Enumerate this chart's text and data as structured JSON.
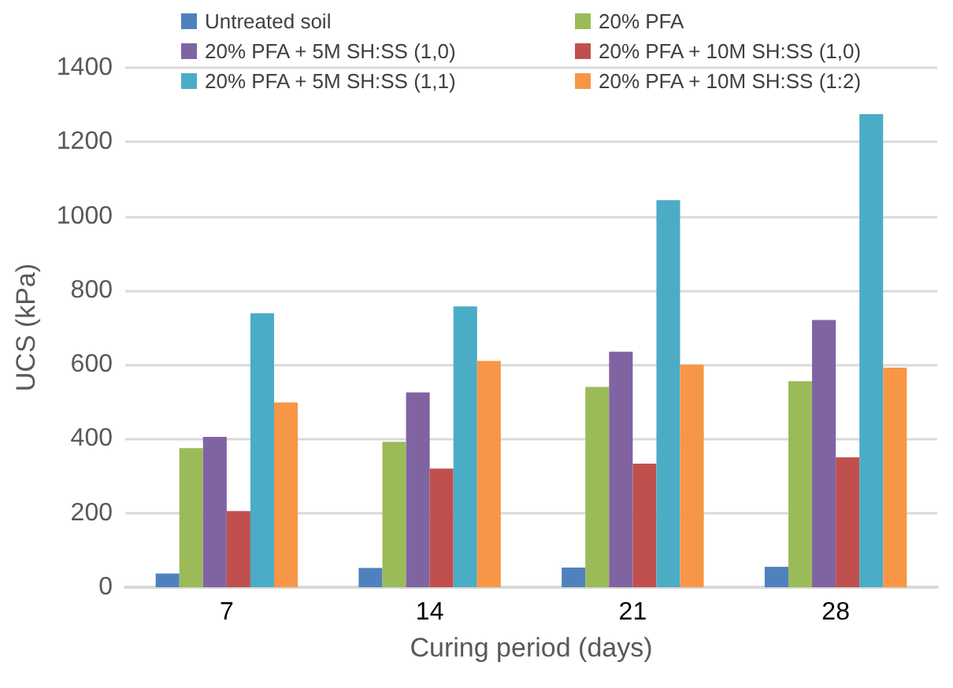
{
  "chart_data": {
    "type": "bar",
    "xlabel": "Curing period (days)",
    "ylabel": "UCS (kPa)",
    "categories": [
      "7",
      "14",
      "21",
      "28"
    ],
    "series": [
      {
        "name": "Untreated soil",
        "color": "#4f81bd",
        "values": [
          37,
          52,
          53,
          55
        ]
      },
      {
        "name": "20% PFA",
        "color": "#9bbb59",
        "values": [
          375,
          392,
          540,
          555
        ]
      },
      {
        "name": "20% PFA + 5M SH:SS (1,0)",
        "color": "#8064a2",
        "values": [
          405,
          525,
          635,
          720
        ]
      },
      {
        "name": "20% PFA + 10M SH:SS (1,0)",
        "color": "#c0504d",
        "values": [
          205,
          320,
          333,
          350
        ]
      },
      {
        "name": "20% PFA + 5M SH:SS (1,1)",
        "color": "#4bacc6",
        "values": [
          738,
          757,
          1043,
          1275
        ]
      },
      {
        "name": "20% PFA + 10M SH:SS (1:2)",
        "color": "#f79646",
        "values": [
          498,
          610,
          600,
          592
        ]
      }
    ],
    "ylim": [
      0,
      1400
    ],
    "yticks": [
      0,
      200,
      400,
      600,
      800,
      1000,
      1200,
      1400
    ],
    "grid": "y",
    "legend": "top"
  }
}
